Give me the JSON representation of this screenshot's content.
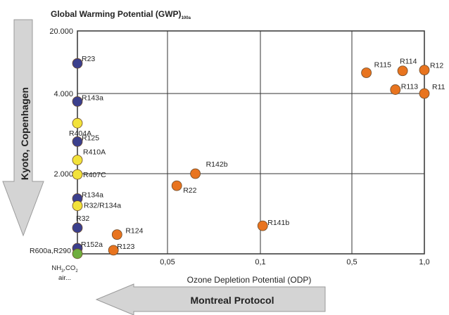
{
  "chart_data": {
    "type": "scatter",
    "title": "Global Warming Potential (GWP)",
    "title_subscript": "100a",
    "xlabel": "Ozone Depletion Potential (ODP)",
    "x_scale": "piecewise",
    "y_scale": "piecewise",
    "xlim": [
      0,
      1.0
    ],
    "ylim": [
      0,
      20000
    ],
    "x_ticks": [
      "0,05",
      "0,1",
      "0,5",
      "1,0"
    ],
    "y_ticks": [
      "20.000",
      "4.000",
      "2.000"
    ],
    "grid": true,
    "points": [
      {
        "label": "R23",
        "x": 0,
        "y": 11700,
        "color": "#3b3f8c"
      },
      {
        "label": "R143a",
        "x": 0,
        "y": 3800,
        "color": "#3b3f8c"
      },
      {
        "label": "R404A",
        "x": 0,
        "y": 3260,
        "color": "#f2e23a"
      },
      {
        "label": "R125",
        "x": 0,
        "y": 2800,
        "color": "#3b3f8c"
      },
      {
        "label": "R410A",
        "x": 0,
        "y": 2340,
        "color": "#f2e23a"
      },
      {
        "label": "R407C",
        "x": 0,
        "y": 1980,
        "color": "#f2e23a"
      },
      {
        "label": "R134a",
        "x": 0,
        "y": 1380,
        "color": "#3b3f8c"
      },
      {
        "label": "R32/R134a",
        "x": 0,
        "y": 1200,
        "color": "#f2e23a"
      },
      {
        "label": "R32",
        "x": 0,
        "y": 650,
        "color": "#3b3f8c"
      },
      {
        "label": "R152a",
        "x": 0,
        "y": 140,
        "color": "#3b3f8c"
      },
      {
        "label": "R600a,R290",
        "x": 0,
        "y": 3,
        "color": "#6fae3e"
      },
      {
        "label": "R124",
        "x": 0.022,
        "y": 480,
        "color": "#e8741f"
      },
      {
        "label": "R123",
        "x": 0.02,
        "y": 90,
        "color": "#e8741f"
      },
      {
        "label": "R22",
        "x": 0.055,
        "y": 1700,
        "color": "#e8741f"
      },
      {
        "label": "R142b",
        "x": 0.065,
        "y": 2000,
        "color": "#e8741f"
      },
      {
        "label": "R141b",
        "x": 0.11,
        "y": 700,
        "color": "#e8741f"
      },
      {
        "label": "R115",
        "x": 0.6,
        "y": 9300,
        "color": "#e8741f"
      },
      {
        "label": "R114",
        "x": 0.85,
        "y": 9800,
        "color": "#e8741f"
      },
      {
        "label": "R12",
        "x": 1.0,
        "y": 10000,
        "color": "#e8741f"
      },
      {
        "label": "R113",
        "x": 0.8,
        "y": 5000,
        "color": "#e8741f"
      },
      {
        "label": "R11",
        "x": 1.0,
        "y": 4000,
        "color": "#e8741f"
      }
    ],
    "annotations": {
      "origin_note_line1": "NH",
      "origin_note_sub1": "3",
      "origin_note_mid": ",CO",
      "origin_note_sub2": "2",
      "origin_note_line2": "air..."
    },
    "arrows": {
      "vertical": "Kyoto, Copenhagen",
      "horizontal": "Montreal Protocol"
    }
  }
}
